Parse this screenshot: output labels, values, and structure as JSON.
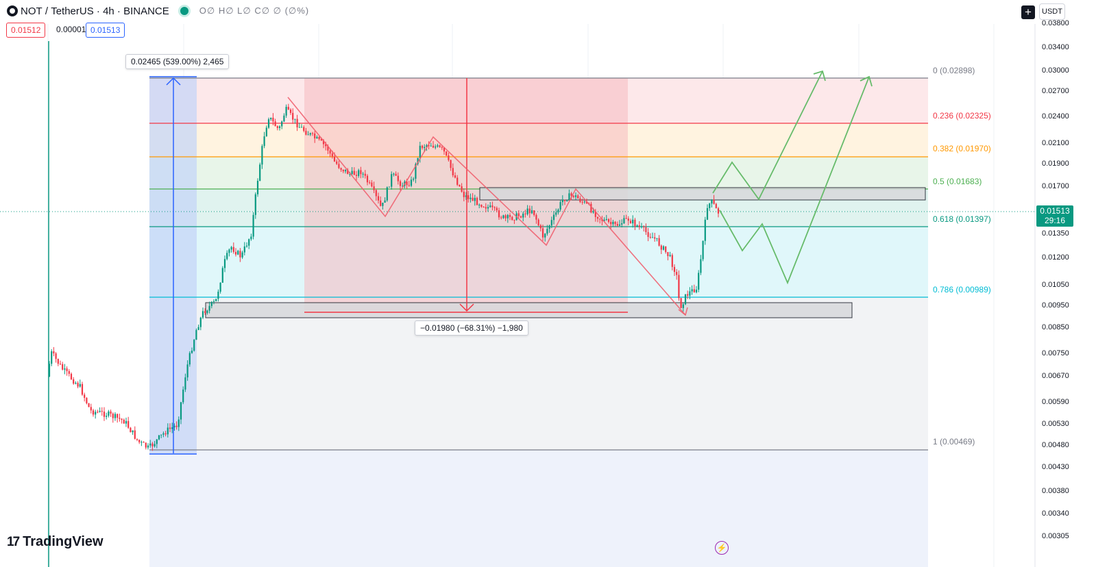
{
  "header": {
    "symbol": "NOT",
    "separator": "/",
    "quote": "TetherUS",
    "interval_sep": "·",
    "interval": "4h",
    "exchange_sep": "·",
    "exchange": "BINANCE",
    "ohlc": "O∅ H∅ L∅ C∅ ∅ (∅%)",
    "status_color": "#089981"
  },
  "prices": {
    "sell": "0.01512",
    "spread": "0.00001",
    "buy": "0.01513"
  },
  "currency_button": "USDT",
  "add_button": "+",
  "price_axis": {
    "ticks": [
      "0.03800",
      "0.03400",
      "0.03000",
      "0.02700",
      "0.02400",
      "0.02100",
      "0.01900",
      "0.01700",
      "0.01350",
      "0.01200",
      "0.01050",
      "0.00950",
      "0.00850",
      "0.00750",
      "0.00670",
      "0.00590",
      "0.00530",
      "0.00480",
      "0.00430",
      "0.00380",
      "0.00340",
      "0.00305"
    ],
    "current_price": "0.01513",
    "countdown": "29:16"
  },
  "fibonacci": [
    {
      "label": "0 (0.02898)",
      "color": "#787b86"
    },
    {
      "label": "0.236 (0.02325)",
      "color": "#f23645"
    },
    {
      "label": "0.382 (0.01970)",
      "color": "#ff9800"
    },
    {
      "label": "0.5 (0.01683)",
      "color": "#4caf50"
    },
    {
      "label": "0.618 (0.01397)",
      "color": "#089981"
    },
    {
      "label": "0.786 (0.00989)",
      "color": "#00bcd4"
    },
    {
      "label": "1 (0.00469)",
      "color": "#787b86"
    }
  ],
  "measures": {
    "rise": "0.02465 (539.00%) 2,465",
    "drop": "−0.01980 (−68.31%) −1,980"
  },
  "brand": {
    "name": "TradingView",
    "mark": "17"
  },
  "colors": {
    "up": "#089981",
    "down": "#f23645",
    "projection": "#66bb6a",
    "pattern": "#f05a6a",
    "measure_up": "#2962ff"
  }
}
